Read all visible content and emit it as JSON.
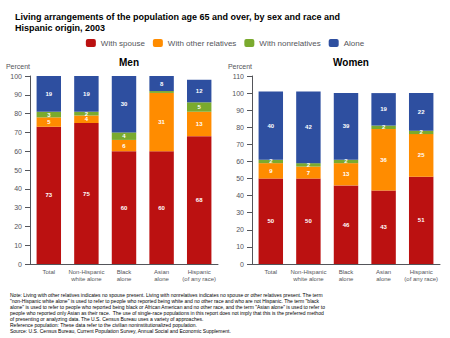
{
  "title": "Living arrangements of the population age 65 and over, by sex and race and\nHispanic origin, 2003",
  "note": "Note: Living with other relatives indicates no spouse present. Living with nonrelatives indicates no spouse or other relatives present. The term\n\"non-Hispanic white alone\" is used to refer to people who reported being white and no other race and who are not Hispanic. The term \"black\nalone\" is used to refer to people who reported being black or African American and no other race, and the term \"Asian alone\" is used to refer to\npeople who reported only Asian as their race.  The use of single-race populations in this report does not imply that this is the preferred method\nof presenting or analyzing data. The U.S. Census Bureau uses a variety of approaches.\nReference population: These data refer to the civilian noninstitutionalized population.\nSource: U.S. Census Bureau, Current Population Survey, Annual Social and Economic Supplement.",
  "legend": "top",
  "chart_data": [
    {
      "type": "bar",
      "title": "Men",
      "ylabel": "Percent",
      "stacked": true,
      "data_labels": true,
      "grid": false,
      "categories": [
        "Total",
        "Non-Hispanic\nwhite alone",
        "Black\nalone",
        "Asian\nalone",
        "Hispanic\n(of any race)"
      ],
      "series": [
        {
          "name": "With spouse",
          "color": "#bb1111",
          "values": [
            73,
            75,
            60,
            60,
            68
          ]
        },
        {
          "name": "With other relatives",
          "color": "#ff8c00",
          "values": [
            5,
            4,
            6,
            31,
            13
          ]
        },
        {
          "name": "With nonrelatives",
          "color": "#7aaa2e",
          "values": [
            3,
            2,
            4,
            1,
            5
          ],
          "value_labels": [
            "3",
            "2",
            "4",
            null,
            "5"
          ]
        },
        {
          "name": "Alone",
          "color": "#2e4fa0",
          "values": [
            19,
            19,
            30,
            8,
            12
          ]
        }
      ],
      "ylim": [
        0,
        100
      ],
      "yticks": [
        0,
        10,
        20,
        30,
        40,
        50,
        60,
        70,
        80,
        90,
        100
      ]
    },
    {
      "type": "bar",
      "title": "Women",
      "ylabel": "Percent",
      "stacked": true,
      "data_labels": true,
      "grid": false,
      "categories": [
        "Total",
        "Non-Hispanic\nwhite alone",
        "Black\nalone",
        "Asian\nalone",
        "Hispanic\n(of any race)"
      ],
      "series": [
        {
          "name": "With spouse",
          "color": "#bb1111",
          "values": [
            50,
            50,
            46,
            43,
            51
          ]
        },
        {
          "name": "With other relatives",
          "color": "#ff8c00",
          "values": [
            9,
            7,
            13,
            36,
            25
          ]
        },
        {
          "name": "With nonrelatives",
          "color": "#7aaa2e",
          "values": [
            2,
            2,
            2,
            2,
            2
          ]
        },
        {
          "name": "Alone",
          "color": "#2e4fa0",
          "values": [
            40,
            42,
            39,
            19,
            22
          ]
        }
      ],
      "ylim": [
        0,
        110
      ],
      "yticks": [
        0,
        10,
        20,
        30,
        40,
        50,
        60,
        70,
        80,
        90,
        100,
        110
      ]
    }
  ]
}
